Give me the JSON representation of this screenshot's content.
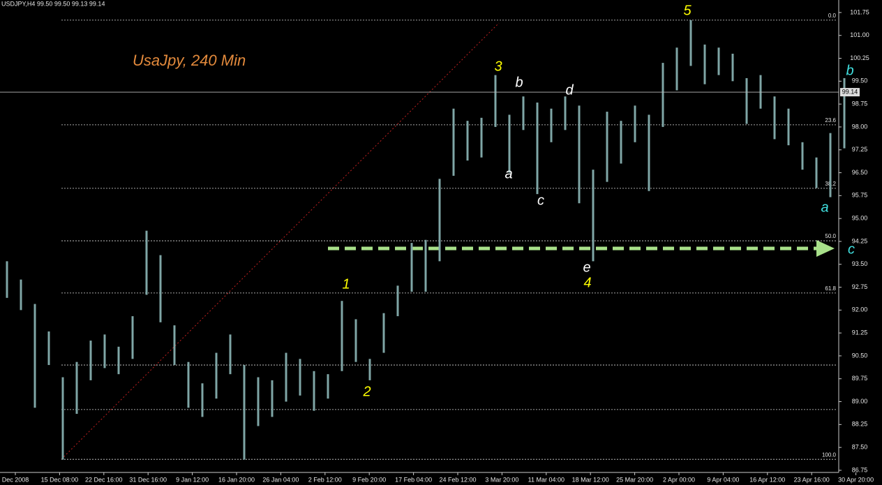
{
  "chart_data": {
    "type": "ohlc",
    "header": "USDJPY,H4  99.50 99.50 99.13 99.14",
    "title": "UsaJpy, 240 Min",
    "color": "#7fa6a6",
    "ylim": [
      86.68,
      102.16
    ],
    "yticks": [
      86.75,
      {
        "value": 87.5,
        "label": "87.50"
      },
      88.25,
      {
        "value": 89,
        "label": "89.00"
      },
      89.75,
      {
        "value": 90.5,
        "label": "90.50"
      },
      91.25,
      {
        "value": 92,
        "label": "92.00"
      },
      92.75,
      {
        "value": 93.5,
        "label": "93.50"
      },
      94.25,
      {
        "value": 95,
        "label": "95.00"
      },
      95.75,
      {
        "value": 96.5,
        "label": "96.50"
      },
      97.25,
      {
        "value": 98,
        "label": "98.00"
      },
      98.75,
      {
        "value": 99.5,
        "label": "99.50"
      },
      100.25,
      {
        "value": 101,
        "label": "101.00"
      },
      101.75
    ],
    "x_labels": [
      "Dec 2008",
      "15 Dec 08:00",
      "22 Dec 16:00",
      "31 Dec 16:00",
      "9 Jan 12:00",
      "16 Jan 20:00",
      "26 Jan 04:00",
      "2 Feb 12:00",
      "9 Feb 20:00",
      "17 Feb 04:00",
      "24 Feb 12:00",
      "3 Mar 20:00",
      "11 Mar 04:00",
      "18 Mar 12:00",
      "25 Mar 20:00",
      "2 Apr 00:00",
      "9 Apr 04:00",
      "16 Apr 12:00",
      "23 Apr 16:00",
      "30 Apr 20:00"
    ],
    "highs": [
      93.6,
      93.0,
      92.2,
      91.3,
      89.8,
      90.3,
      91.0,
      91.2,
      90.8,
      91.8,
      94.6,
      93.8,
      91.5,
      90.3,
      89.6,
      90.6,
      91.2,
      90.2,
      89.8,
      89.7,
      90.6,
      90.4,
      90.0,
      89.9,
      92.3,
      91.7,
      90.4,
      91.9,
      92.8,
      94.2,
      94.3,
      96.3,
      98.6,
      98.2,
      98.3,
      99.7,
      98.4,
      99.0,
      98.8,
      98.6,
      99.0,
      98.7,
      96.6,
      98.5,
      98.2,
      98.7,
      98.4,
      100.1,
      100.6,
      101.5,
      100.7,
      100.6,
      100.4,
      99.6,
      99.7,
      99.0,
      98.6,
      97.5,
      97.0,
      97.8,
      99.6
    ],
    "lows": [
      92.4,
      92.0,
      88.8,
      90.2,
      87.1,
      88.6,
      89.7,
      90.1,
      89.9,
      90.4,
      92.5,
      91.6,
      90.2,
      88.8,
      88.5,
      89.1,
      89.9,
      87.1,
      88.2,
      88.5,
      89.0,
      89.2,
      88.7,
      89.1,
      90.0,
      90.3,
      89.7,
      90.6,
      91.8,
      92.6,
      92.6,
      93.6,
      96.4,
      96.9,
      97.0,
      98.0,
      96.5,
      97.9,
      95.8,
      97.5,
      97.9,
      95.5,
      93.6,
      96.2,
      96.8,
      97.5,
      95.9,
      98.0,
      99.2,
      100.0,
      99.4,
      99.7,
      99.5,
      98.1,
      98.6,
      97.6,
      97.4,
      96.6,
      96.0,
      95.7,
      97.3
    ],
    "levels": [
      {
        "label": "0.0",
        "value": 101.5
      },
      {
        "label": "23.6",
        "value": 98.07
      },
      {
        "label": "38.2",
        "value": 95.99
      },
      {
        "label": "50.0",
        "value": 94.27
      },
      {
        "label": "61.8",
        "value": 92.56
      },
      {
        "label": "100.0",
        "value": 87.11
      }
    ],
    "extra_levels": [
      90.2,
      88.74
    ],
    "last_price": 99.14,
    "annotations": [
      {
        "text": "1",
        "color": "#ffff00"
      },
      {
        "text": "2",
        "color": "#ffff00"
      },
      {
        "text": "3",
        "color": "#ffff00"
      },
      {
        "text": "a",
        "color": "#ffffff"
      },
      {
        "text": "b",
        "color": "#ffffff"
      },
      {
        "text": "c",
        "color": "#ffffff"
      },
      {
        "text": "d",
        "color": "#ffffff"
      },
      {
        "text": "e",
        "color": "#ffffff"
      },
      {
        "text": "4",
        "color": "#ffff00"
      },
      {
        "text": "5",
        "color": "#ffff00"
      },
      {
        "text": "a",
        "color": "#40e0e0"
      },
      {
        "text": "b",
        "color": "#40e0e0"
      },
      {
        "text": "c",
        "color": "#40e0e0"
      }
    ]
  }
}
